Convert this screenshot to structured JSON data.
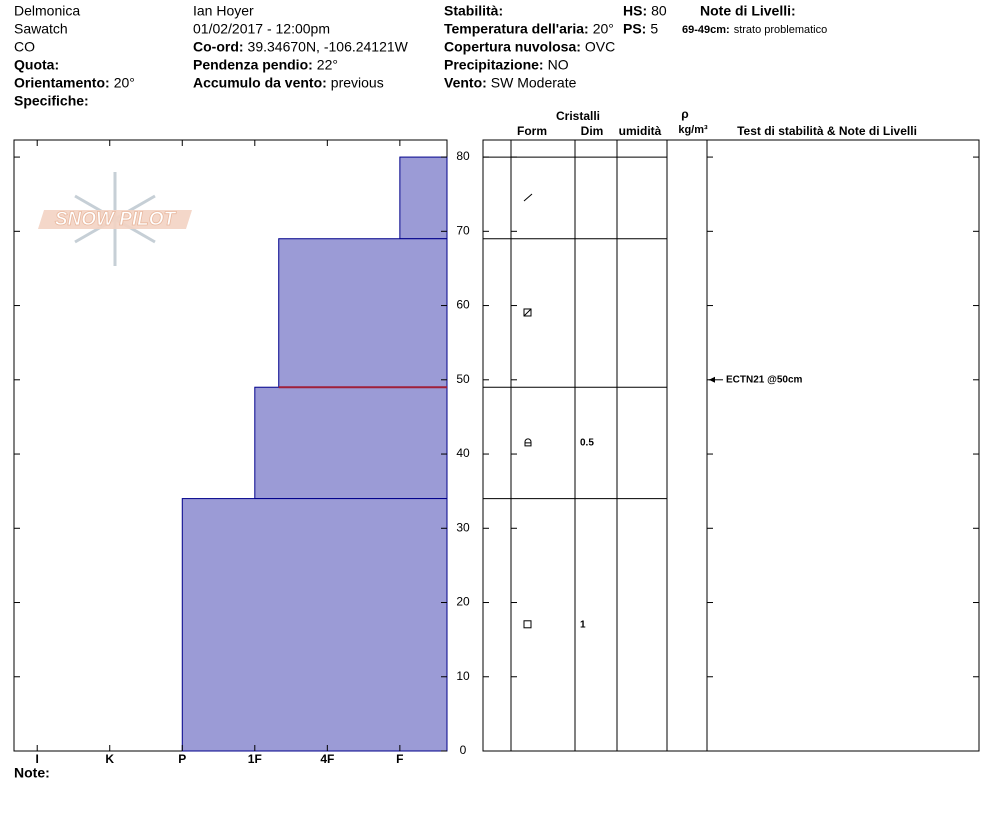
{
  "header": {
    "location": [
      "Delmonica",
      "Sawatch",
      "CO"
    ],
    "observer": "Ian Hoyer",
    "datetime": "01/02/2017 - 12:00pm",
    "fields": [
      {
        "label": "Quota:"
      },
      {
        "label": "Orientamento:",
        "value": "20°"
      },
      {
        "label": "Specifiche:"
      },
      {
        "label": "Co-ord:",
        "value": "39.34670N, -106.24121W"
      },
      {
        "label": "Pendenza pendio:",
        "value": "22°"
      },
      {
        "label": "Accumulo da vento:",
        "value": "previous"
      },
      {
        "label": "Stabilità:"
      },
      {
        "label": "Temperatura dell'aria:",
        "value": "20°"
      },
      {
        "label": "Copertura nuvolosa:",
        "value": "OVC"
      },
      {
        "label": "Precipitazione:",
        "value": "NO"
      },
      {
        "label": "Vento:",
        "value": "SW Moderate"
      },
      {
        "label": "HS:",
        "value": "80"
      },
      {
        "label": "PS:",
        "value": "5"
      },
      {
        "label": "Note di Livelli:"
      },
      {
        "label": "69-49cm:",
        "value": "strato problematico"
      }
    ]
  },
  "logo": "SNOW PILOT",
  "profile": {
    "xlim": [
      -0.32,
      5.65
    ],
    "xticks": [
      {
        "value": 0,
        "label": "I"
      },
      {
        "value": 1,
        "label": "K"
      },
      {
        "value": 2,
        "label": "P"
      },
      {
        "value": 3,
        "label": "1F"
      },
      {
        "value": 4,
        "label": "4F"
      },
      {
        "value": 5,
        "label": "F"
      }
    ],
    "ylim": [
      0,
      82.3
    ],
    "yticks": [
      0,
      10,
      20,
      30,
      40,
      50,
      60,
      70,
      80
    ],
    "layers": [
      {
        "top": 80,
        "bottom": 69,
        "hardness": 5
      },
      {
        "top": 69,
        "bottom": 49,
        "hardness": 3.33
      },
      {
        "top": 49,
        "bottom": 34,
        "hardness": 3,
        "grain_size": "0.5"
      },
      {
        "top": 34,
        "bottom": 0,
        "hardness": 2,
        "grain_size": "1"
      }
    ],
    "problem_line_depth": 49,
    "color": "#9b9bd6"
  },
  "table": {
    "headers": [
      "Cristalli",
      "Form",
      "Dim",
      "umidità",
      "ρ",
      "kg/m³",
      "Test di stabilità & Note di Livelli"
    ],
    "tests": [
      {
        "depth": 50,
        "label": "ECTN21 @50cm"
      }
    ]
  },
  "footer": "Note:"
}
